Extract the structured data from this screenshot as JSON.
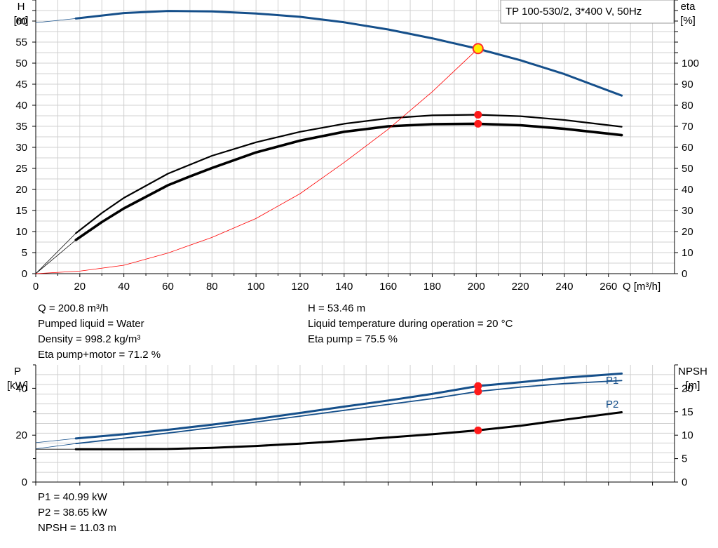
{
  "chart_data": [
    {
      "type": "line",
      "title": "TP 100-530/2, 3*400 V, 50Hz",
      "xlabel": "Q [m³/h]",
      "ylabel": [
        "H",
        "[m]"
      ],
      "y2label": [
        "eta",
        "[%]"
      ],
      "xlim": [
        0,
        290
      ],
      "ylim": [
        0,
        65
      ],
      "y2lim": [
        0,
        130
      ],
      "xticks": [
        0,
        20,
        40,
        60,
        80,
        100,
        120,
        140,
        160,
        180,
        200,
        220,
        240,
        260
      ],
      "yticks": [
        0,
        5,
        10,
        15,
        20,
        25,
        30,
        35,
        40,
        45,
        50,
        55,
        60
      ],
      "y2ticks": [
        0,
        10,
        20,
        30,
        40,
        50,
        60,
        70,
        80,
        90,
        100
      ],
      "grid": true,
      "series": [
        {
          "color": "#154f8a",
          "axis": "y",
          "width": 3,
          "lead_in": [
            [
              0,
              59.6
            ],
            [
              18.2,
              60.6
            ]
          ],
          "points": [
            [
              18.2,
              60.6
            ],
            [
              40,
              61.9
            ],
            [
              60,
              62.4
            ],
            [
              80,
              62.3
            ],
            [
              100,
              61.8
            ],
            [
              120,
              61.0
            ],
            [
              140,
              59.7
            ],
            [
              160,
              58.0
            ],
            [
              180,
              55.9
            ],
            [
              200,
              53.5
            ],
            [
              220,
              50.7
            ],
            [
              240,
              47.4
            ],
            [
              266,
              42.3
            ]
          ]
        },
        {
          "color": "#000000",
          "axis": "y2",
          "width": 2.2,
          "lead_in": [
            [
              0,
              0
            ],
            [
              18.2,
              19.2
            ]
          ],
          "points": [
            [
              18.2,
              19.2
            ],
            [
              30,
              28.8
            ],
            [
              40,
              36.0
            ],
            [
              60,
              47.5
            ],
            [
              80,
              56.0
            ],
            [
              100,
              62.4
            ],
            [
              120,
              67.4
            ],
            [
              140,
              71.2
            ],
            [
              160,
              73.8
            ],
            [
              180,
              75.2
            ],
            [
              200,
              75.5
            ],
            [
              220,
              74.8
            ],
            [
              240,
              73.0
            ],
            [
              266,
              69.8
            ]
          ]
        },
        {
          "color": "#000000",
          "axis": "y2",
          "width": 3.6,
          "lead_in": [
            [
              0,
              0
            ],
            [
              18.2,
              16.0
            ]
          ],
          "points": [
            [
              18.2,
              16.0
            ],
            [
              30,
              24.5
            ],
            [
              40,
              31.0
            ],
            [
              60,
              42.0
            ],
            [
              70,
              46.2
            ],
            [
              80,
              50.2
            ],
            [
              100,
              57.6
            ],
            [
              120,
              63.2
            ],
            [
              140,
              67.4
            ],
            [
              160,
              70.0
            ],
            [
              180,
              71.0
            ],
            [
              200,
              71.2
            ],
            [
              220,
              70.5
            ],
            [
              240,
              68.8
            ],
            [
              266,
              65.8
            ]
          ]
        },
        {
          "color": "#ff0000",
          "axis": "y",
          "width": 0.8,
          "points": [
            [
              0,
              0
            ],
            [
              20,
              0.6
            ],
            [
              40,
              2.0
            ],
            [
              60,
              4.9
            ],
            [
              80,
              8.6
            ],
            [
              100,
              13.1
            ],
            [
              120,
              19.0
            ],
            [
              140,
              26.4
            ],
            [
              160,
              34.3
            ],
            [
              180,
              43.2
            ],
            [
              200.8,
              53.46
            ]
          ]
        }
      ],
      "markers": [
        {
          "x": 200.8,
          "y": 53.46,
          "axis": "y",
          "style": "ring"
        },
        {
          "x": 200.8,
          "y": 75.5,
          "axis": "y2",
          "style": "dot"
        },
        {
          "x": 200.8,
          "y": 71.2,
          "axis": "y2",
          "style": "dot"
        }
      ]
    },
    {
      "type": "line",
      "ylabel": [
        "P",
        "[kW]"
      ],
      "y2label": [
        "NPSH",
        "[m]"
      ],
      "xlim": [
        0,
        290
      ],
      "ylim": [
        0,
        50
      ],
      "y2lim": [
        0,
        25
      ],
      "yticks": [
        0,
        20,
        40
      ],
      "y2ticks": [
        0,
        5,
        10,
        15,
        20
      ],
      "grid": true,
      "series": [
        {
          "name": "P1",
          "color": "#154f8a",
          "axis": "y",
          "width": 3,
          "lead_in": [
            [
              0,
              16.8
            ],
            [
              18.2,
              18.6
            ]
          ],
          "points": [
            [
              18.2,
              18.6
            ],
            [
              40,
              20.4
            ],
            [
              60,
              22.3
            ],
            [
              80,
              24.5
            ],
            [
              100,
              26.9
            ],
            [
              120,
              29.5
            ],
            [
              140,
              32.2
            ],
            [
              160,
              34.8
            ],
            [
              180,
              37.6
            ],
            [
              200.8,
              40.99
            ],
            [
              220,
              42.6
            ],
            [
              240,
              44.5
            ],
            [
              266,
              46.3
            ]
          ]
        },
        {
          "name": "P2",
          "color": "#154f8a",
          "axis": "y",
          "width": 1.8,
          "lead_in": [
            [
              0,
              14.2
            ],
            [
              18.2,
              16.4
            ]
          ],
          "points": [
            [
              18.2,
              16.4
            ],
            [
              40,
              18.7
            ],
            [
              60,
              20.9
            ],
            [
              80,
              23.2
            ],
            [
              100,
              25.6
            ],
            [
              120,
              28.1
            ],
            [
              140,
              30.6
            ],
            [
              160,
              33.1
            ],
            [
              180,
              35.6
            ],
            [
              200.8,
              38.65
            ],
            [
              220,
              40.5
            ],
            [
              240,
              42.0
            ],
            [
              266,
              43.3
            ]
          ]
        },
        {
          "name": "NPSH",
          "color": "#000000",
          "axis": "y2",
          "width": 3,
          "lead_in": [
            [
              0,
              7.0
            ],
            [
              18.2,
              7.0
            ]
          ],
          "points": [
            [
              18.2,
              7.0
            ],
            [
              40,
              7.0
            ],
            [
              60,
              7.05
            ],
            [
              80,
              7.3
            ],
            [
              100,
              7.7
            ],
            [
              120,
              8.2
            ],
            [
              140,
              8.8
            ],
            [
              160,
              9.5
            ],
            [
              180,
              10.2
            ],
            [
              200.8,
              11.03
            ],
            [
              220,
              12.0
            ],
            [
              240,
              13.3
            ],
            [
              266,
              14.9
            ]
          ]
        }
      ],
      "markers": [
        {
          "x": 200.8,
          "y": 40.99,
          "axis": "y",
          "style": "dot"
        },
        {
          "x": 200.8,
          "y": 38.65,
          "axis": "y",
          "style": "dot"
        },
        {
          "x": 200.8,
          "y": 11.03,
          "axis": "y2",
          "style": "dot"
        }
      ]
    }
  ],
  "info_top_left": [
    "Q = 200.8 m³/h",
    "Pumped liquid = Water",
    "Density = 998.2 kg/m³",
    "Eta pump+motor = 71.2 %"
  ],
  "info_top_right": [
    "H = 53.46 m",
    "Liquid temperature during operation = 20 °C",
    "Eta pump = 75.5 %"
  ],
  "info_bottom": [
    "P1 = 40.99 kW",
    "P2 = 38.65 kW",
    "NPSH = 11.03 m"
  ]
}
